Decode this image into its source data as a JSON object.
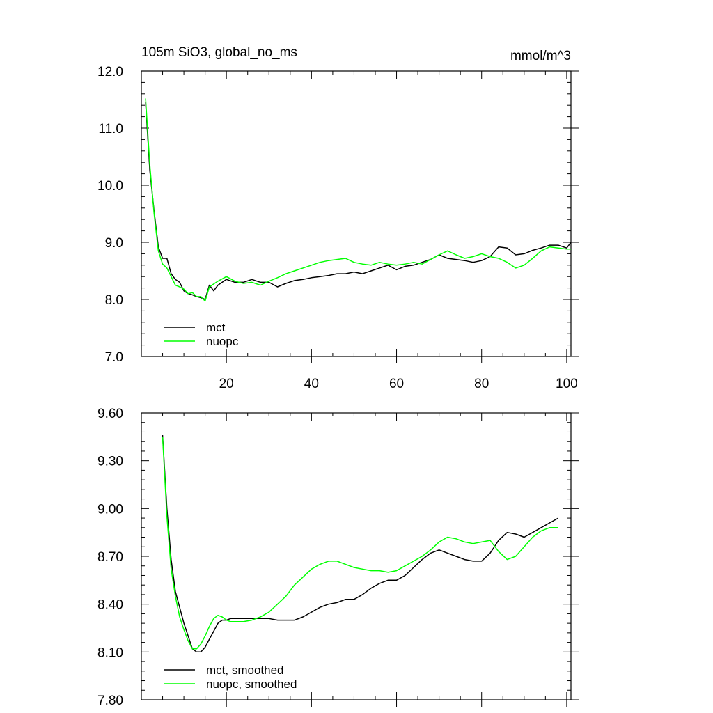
{
  "chart_data": [
    {
      "type": "line",
      "title": "105m SiO3, global_no_ms",
      "units": "mmol/m^3",
      "xlim": [
        0,
        101
      ],
      "ylim": [
        7.0,
        12.0
      ],
      "xticks": [
        20,
        40,
        60,
        80,
        100
      ],
      "yticks": [
        7.0,
        8.0,
        9.0,
        10.0,
        11.0,
        12.0
      ],
      "ytick_labels": [
        "7.0",
        "8.0",
        "9.0",
        "10.0",
        "11.0",
        "12.0"
      ],
      "show_x_labels": true,
      "legend": {
        "position": "bottom-left"
      },
      "series": [
        {
          "name": "mct",
          "color": "#000000",
          "x": [
            1,
            2,
            3,
            4,
            5,
            6,
            7,
            8,
            9,
            10,
            11,
            12,
            13,
            14,
            15,
            16,
            17,
            18,
            20,
            22,
            24,
            26,
            28,
            30,
            32,
            34,
            36,
            38,
            40,
            42,
            44,
            46,
            48,
            50,
            52,
            54,
            56,
            58,
            60,
            62,
            64,
            66,
            68,
            70,
            72,
            74,
            76,
            78,
            80,
            82,
            84,
            86,
            88,
            90,
            92,
            94,
            96,
            98,
            100,
            101
          ],
          "y": [
            11.45,
            10.25,
            9.55,
            8.92,
            8.72,
            8.72,
            8.45,
            8.35,
            8.3,
            8.15,
            8.1,
            8.08,
            8.05,
            8.03,
            8.0,
            8.25,
            8.15,
            8.25,
            8.35,
            8.3,
            8.3,
            8.35,
            8.3,
            8.3,
            8.22,
            8.28,
            8.33,
            8.35,
            8.38,
            8.4,
            8.42,
            8.45,
            8.45,
            8.48,
            8.45,
            8.5,
            8.55,
            8.6,
            8.52,
            8.58,
            8.6,
            8.65,
            8.7,
            8.78,
            8.72,
            8.7,
            8.68,
            8.65,
            8.68,
            8.75,
            8.92,
            8.9,
            8.78,
            8.8,
            8.86,
            8.9,
            8.95,
            8.95,
            8.9,
            9.0
          ]
        },
        {
          "name": "nuopc",
          "color": "#00ff00",
          "x": [
            1,
            2,
            3,
            4,
            5,
            6,
            7,
            8,
            9,
            10,
            11,
            12,
            13,
            14,
            15,
            16,
            18,
            20,
            22,
            24,
            26,
            28,
            30,
            32,
            34,
            36,
            38,
            40,
            42,
            44,
            46,
            48,
            50,
            52,
            54,
            56,
            58,
            60,
            62,
            64,
            66,
            68,
            70,
            72,
            74,
            76,
            78,
            80,
            82,
            84,
            86,
            88,
            90,
            92,
            94,
            96,
            98,
            100,
            101
          ],
          "y": [
            11.52,
            10.35,
            9.5,
            8.85,
            8.62,
            8.55,
            8.4,
            8.25,
            8.22,
            8.18,
            8.1,
            8.12,
            8.05,
            8.05,
            7.97,
            8.22,
            8.32,
            8.4,
            8.32,
            8.28,
            8.3,
            8.25,
            8.32,
            8.38,
            8.45,
            8.5,
            8.55,
            8.6,
            8.65,
            8.68,
            8.7,
            8.72,
            8.65,
            8.62,
            8.6,
            8.65,
            8.62,
            8.6,
            8.62,
            8.65,
            8.62,
            8.7,
            8.78,
            8.85,
            8.78,
            8.72,
            8.75,
            8.8,
            8.75,
            8.72,
            8.65,
            8.55,
            8.6,
            8.72,
            8.85,
            8.92,
            8.9,
            8.88,
            8.88
          ]
        }
      ]
    },
    {
      "type": "line",
      "xlim": [
        0,
        101
      ],
      "ylim": [
        7.8,
        9.6
      ],
      "xticks": [
        20,
        40,
        60,
        80,
        100
      ],
      "yticks": [
        7.8,
        8.1,
        8.4,
        8.7,
        9.0,
        9.3,
        9.6
      ],
      "ytick_labels": [
        "7.80",
        "8.10",
        "8.40",
        "8.70",
        "9.00",
        "9.30",
        "9.60"
      ],
      "show_x_labels": false,
      "legend": {
        "position": "bottom-left"
      },
      "series": [
        {
          "name": "mct, smoothed",
          "color": "#000000",
          "x": [
            5,
            6,
            7,
            8,
            9,
            10,
            11,
            12,
            13,
            14,
            15,
            16,
            17,
            18,
            19,
            20,
            21,
            22,
            23,
            24,
            26,
            28,
            30,
            32,
            34,
            36,
            38,
            40,
            42,
            44,
            46,
            48,
            50,
            52,
            54,
            56,
            58,
            60,
            62,
            64,
            66,
            68,
            70,
            72,
            74,
            76,
            78,
            80,
            82,
            84,
            86,
            88,
            90,
            92,
            94,
            96,
            98
          ],
          "y": [
            9.46,
            9.0,
            8.68,
            8.48,
            8.38,
            8.28,
            8.2,
            8.12,
            8.1,
            8.1,
            8.13,
            8.18,
            8.23,
            8.28,
            8.3,
            8.3,
            8.31,
            8.31,
            8.31,
            8.31,
            8.31,
            8.31,
            8.31,
            8.3,
            8.3,
            8.3,
            8.32,
            8.35,
            8.38,
            8.4,
            8.41,
            8.43,
            8.43,
            8.46,
            8.5,
            8.53,
            8.55,
            8.55,
            8.58,
            8.63,
            8.68,
            8.72,
            8.74,
            8.72,
            8.7,
            8.68,
            8.67,
            8.67,
            8.72,
            8.8,
            8.85,
            8.84,
            8.82,
            8.85,
            8.88,
            8.91,
            8.94
          ]
        },
        {
          "name": "nuopc, smoothed",
          "color": "#00ff00",
          "x": [
            5,
            6,
            7,
            8,
            9,
            10,
            11,
            12,
            13,
            14,
            15,
            16,
            17,
            18,
            19,
            20,
            21,
            22,
            23,
            24,
            26,
            28,
            30,
            32,
            34,
            36,
            38,
            40,
            42,
            44,
            46,
            48,
            50,
            52,
            54,
            56,
            58,
            60,
            62,
            64,
            66,
            68,
            70,
            72,
            74,
            76,
            78,
            80,
            82,
            84,
            86,
            88,
            90,
            92,
            94,
            96,
            98
          ],
          "y": [
            9.45,
            8.95,
            8.62,
            8.45,
            8.32,
            8.24,
            8.17,
            8.12,
            8.12,
            8.15,
            8.2,
            8.26,
            8.31,
            8.33,
            8.32,
            8.3,
            8.29,
            8.29,
            8.29,
            8.29,
            8.3,
            8.32,
            8.35,
            8.4,
            8.45,
            8.52,
            8.57,
            8.62,
            8.65,
            8.67,
            8.67,
            8.65,
            8.63,
            8.62,
            8.61,
            8.61,
            8.6,
            8.61,
            8.64,
            8.67,
            8.7,
            8.74,
            8.79,
            8.82,
            8.81,
            8.79,
            8.78,
            8.79,
            8.8,
            8.73,
            8.68,
            8.7,
            8.76,
            8.82,
            8.86,
            8.88,
            8.88
          ]
        }
      ]
    }
  ]
}
